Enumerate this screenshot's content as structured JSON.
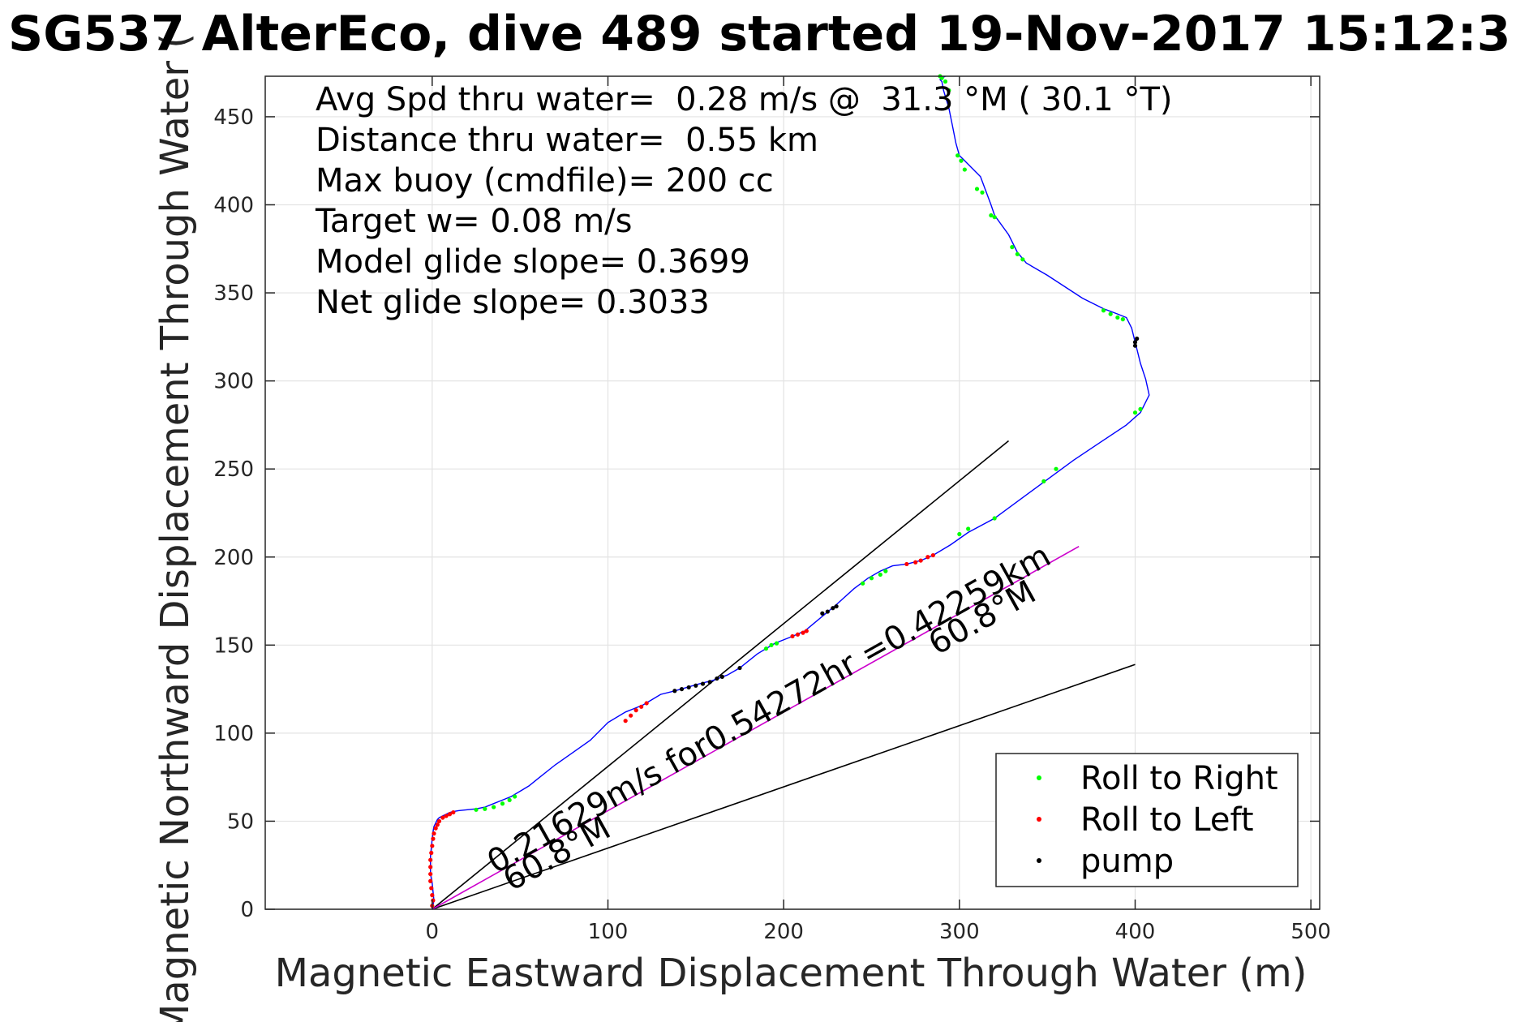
{
  "chart_data": {
    "type": "line",
    "title": "SG537 AlterEco, dive 489 started 19-Nov-2017 15:12:3",
    "xlabel": "Magnetic Eastward Displacement Through Water (m)",
    "ylabel": "Magnetic Northward Displacement Through Water (",
    "xlim": [
      -95,
      505
    ],
    "ylim": [
      0,
      473
    ],
    "xticks": [
      0,
      100,
      200,
      300,
      400,
      500
    ],
    "yticks": [
      0,
      50,
      100,
      150,
      200,
      250,
      300,
      350,
      400,
      450
    ],
    "xtick_labels": [
      "0",
      "100",
      "200",
      "300",
      "400",
      "500"
    ],
    "ytick_labels": [
      "0",
      "50",
      "100",
      "150",
      "200",
      "250",
      "300",
      "350",
      "400",
      "450"
    ],
    "grid": true,
    "legend_position": "bottom-right",
    "info_lines": [
      "Avg Spd thru water=  0.28 m/s @  31.3 °M ( 30.1 °T)",
      "Distance thru water=  0.55 km",
      "Max buoy (cmdfile)= 200 cc",
      "Target w= 0.08 m/s",
      "Model glide slope= 0.3699",
      "Net glide slope= 0.3033"
    ],
    "track": {
      "color": "#0000ff",
      "x": [
        0,
        1,
        0.5,
        0,
        -1,
        -1,
        -1,
        -0.5,
        0,
        0.5,
        1,
        2,
        3,
        4,
        6,
        8,
        10,
        12,
        15,
        20,
        25,
        30,
        35,
        40,
        45,
        50,
        55,
        60,
        70,
        80,
        90,
        100,
        110,
        115,
        120,
        125,
        130,
        138,
        145,
        152,
        160,
        168,
        175,
        185,
        195,
        205,
        212,
        218,
        224,
        230,
        240,
        248,
        255,
        262,
        270,
        278,
        285,
        295,
        305,
        320,
        335,
        350,
        365,
        380,
        395,
        403,
        408,
        406,
        403,
        401,
        400,
        398,
        395,
        390,
        382,
        370,
        350,
        338,
        333,
        328,
        320,
        318,
        315,
        312,
        308,
        304,
        302,
        300,
        298,
        296,
        294,
        291,
        290,
        289,
        290,
        292
      ],
      "y": [
        0,
        5,
        10,
        15,
        20,
        25,
        30,
        35,
        40,
        44,
        47,
        49,
        51,
        52,
        53,
        54,
        55,
        55.5,
        56,
        56.5,
        57,
        58,
        60,
        62,
        64,
        67,
        70,
        74,
        82,
        89,
        96,
        106,
        112,
        114,
        116,
        119,
        122,
        124,
        126,
        128,
        130,
        133,
        137,
        145,
        151,
        155,
        158,
        163,
        168,
        173,
        182,
        188,
        192,
        195,
        196,
        198,
        201,
        207,
        214,
        222,
        233,
        244,
        255,
        265,
        275,
        282,
        292,
        301,
        310,
        318,
        322,
        330,
        336,
        338,
        341,
        347,
        360,
        367,
        373,
        383,
        394,
        400,
        408,
        416,
        420,
        424,
        426,
        428,
        435,
        445,
        455,
        465,
        470,
        471,
        472,
        473
      ]
    },
    "series": [
      {
        "name": "Roll to Right",
        "color": "#00ff00",
        "points": [
          [
            25,
            56.5
          ],
          [
            30,
            57
          ],
          [
            35,
            58
          ],
          [
            40,
            60
          ],
          [
            44,
            62
          ],
          [
            47,
            64
          ],
          [
            190,
            148
          ],
          [
            193,
            150
          ],
          [
            196,
            151
          ],
          [
            245,
            185
          ],
          [
            250,
            188
          ],
          [
            255,
            190
          ],
          [
            258,
            192
          ],
          [
            300,
            213
          ],
          [
            305,
            216
          ],
          [
            320,
            222
          ],
          [
            348,
            243
          ],
          [
            355,
            250
          ],
          [
            400,
            282
          ],
          [
            403,
            284
          ],
          [
            382,
            340
          ],
          [
            386,
            338
          ],
          [
            390,
            336
          ],
          [
            393,
            335
          ],
          [
            333,
            372
          ],
          [
            336,
            369
          ],
          [
            330,
            376
          ],
          [
            320,
            393
          ],
          [
            318,
            394
          ],
          [
            313,
            407
          ],
          [
            310,
            409
          ],
          [
            303,
            420
          ],
          [
            301,
            425
          ],
          [
            299,
            428
          ],
          [
            294,
            465
          ],
          [
            292,
            470
          ],
          [
            290,
            472
          ],
          [
            289,
            473
          ]
        ]
      },
      {
        "name": "Roll to Left",
        "color": "#ff0000",
        "points": [
          [
            0,
            2
          ],
          [
            0.5,
            5
          ],
          [
            0,
            8
          ],
          [
            -0.5,
            12
          ],
          [
            -1,
            16
          ],
          [
            -1,
            20
          ],
          [
            -1,
            24
          ],
          [
            -1,
            28
          ],
          [
            -0.5,
            32
          ],
          [
            0,
            36
          ],
          [
            0.5,
            40
          ],
          [
            1,
            43
          ],
          [
            2,
            46
          ],
          [
            3,
            48
          ],
          [
            4,
            50
          ],
          [
            6,
            52
          ],
          [
            8,
            53
          ],
          [
            10,
            54
          ],
          [
            12,
            55
          ],
          [
            110,
            107
          ],
          [
            113,
            110
          ],
          [
            116,
            113
          ],
          [
            119,
            115
          ],
          [
            122,
            117
          ],
          [
            205,
            155
          ],
          [
            208,
            156
          ],
          [
            211,
            157
          ],
          [
            213,
            158
          ],
          [
            270,
            196
          ],
          [
            275,
            197
          ],
          [
            278,
            198
          ],
          [
            282,
            200
          ],
          [
            285,
            201
          ]
        ]
      },
      {
        "name": "pump",
        "color": "#000000",
        "points": [
          [
            138,
            124
          ],
          [
            142,
            125
          ],
          [
            146,
            126
          ],
          [
            150,
            127
          ],
          [
            154,
            128
          ],
          [
            158,
            129
          ],
          [
            162,
            131
          ],
          [
            165,
            132
          ],
          [
            175,
            137
          ],
          [
            222,
            168
          ],
          [
            225,
            169
          ],
          [
            228,
            171
          ],
          [
            230,
            172
          ],
          [
            400,
            320
          ],
          [
            400,
            322
          ],
          [
            401,
            324
          ]
        ]
      }
    ],
    "model_lines": {
      "color": "#000000",
      "lines": [
        {
          "x": [
            0,
            328
          ],
          "y": [
            0,
            266
          ]
        },
        {
          "x": [
            0,
            400
          ],
          "y": [
            0,
            139
          ]
        }
      ]
    },
    "current_line": {
      "color": "#cc00cc",
      "x": [
        0,
        368
      ],
      "y": [
        0,
        206
      ]
    },
    "annotations": [
      {
        "text": "0.21629m/s for0.54272hr =0.42259km",
        "x": 36,
        "y": 20,
        "angle": -29.2
      },
      {
        "text": "60.8°M",
        "x": 45,
        "y": 10,
        "angle": -29.2
      },
      {
        "text": "60.8°M",
        "x": 287,
        "y": 144,
        "angle": -29.2
      }
    ]
  }
}
